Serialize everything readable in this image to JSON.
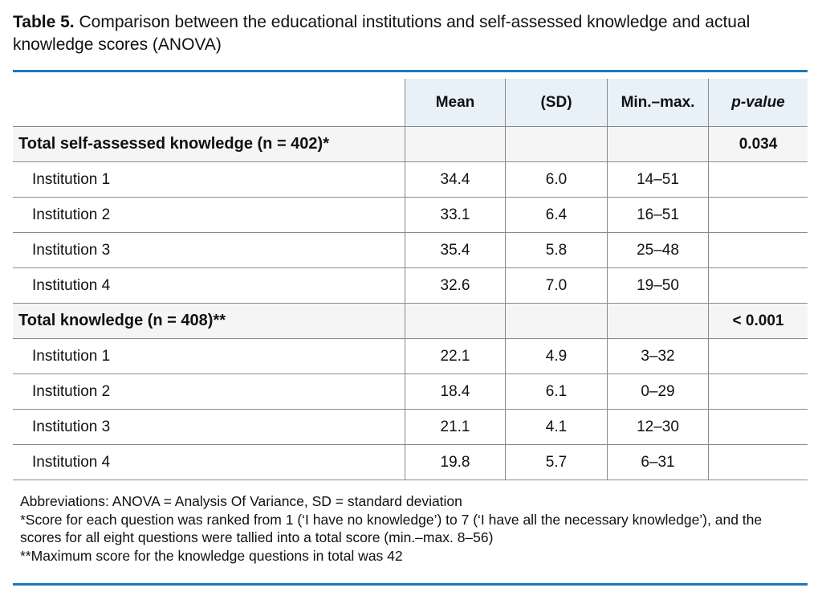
{
  "caption": {
    "label": "Table 5.",
    "text": " Comparison between the educational institutions and self-assessed knowledge and actual knowledge scores (ANOVA)"
  },
  "colors": {
    "rule": "#1b78bd",
    "header_bg": "#e8f0f8",
    "section_bg": "#f5f5f5"
  },
  "table": {
    "headers": [
      "",
      "Mean",
      "(SD)",
      "Min.–max.",
      "p-value"
    ],
    "sections": [
      {
        "title": "Total self-assessed knowledge (n = 402)*",
        "p_value": "0.034",
        "rows": [
          {
            "label": "Institution 1",
            "mean": "34.4",
            "sd": "6.0",
            "range": "14–51"
          },
          {
            "label": "Institution 2",
            "mean": "33.1",
            "sd": "6.4",
            "range": "16–51"
          },
          {
            "label": "Institution 3",
            "mean": "35.4",
            "sd": "5.8",
            "range": "25–48"
          },
          {
            "label": "Institution 4",
            "mean": "32.6",
            "sd": "7.0",
            "range": "19–50"
          }
        ]
      },
      {
        "title": "Total knowledge (n = 408)**",
        "p_value": "< 0.001",
        "rows": [
          {
            "label": "Institution 1",
            "mean": "22.1",
            "sd": "4.9",
            "range": "3–32"
          },
          {
            "label": "Institution 2",
            "mean": "18.4",
            "sd": "6.1",
            "range": "0–29"
          },
          {
            "label": "Institution 3",
            "mean": "21.1",
            "sd": "4.1",
            "range": "12–30"
          },
          {
            "label": "Institution 4",
            "mean": "19.8",
            "sd": "5.7",
            "range": "6–31"
          }
        ]
      }
    ]
  },
  "notes": [
    "Abbreviations: ANOVA = Analysis Of Variance, SD = standard deviation",
    "*Score for each question was ranked from 1 (‘I have no knowledge’) to 7 (‘I have all the necessary knowledge’), and the scores for all eight questions were tallied into a total score (min.–max. 8–56)",
    "**Maximum score for the knowledge questions in total was 42"
  ]
}
